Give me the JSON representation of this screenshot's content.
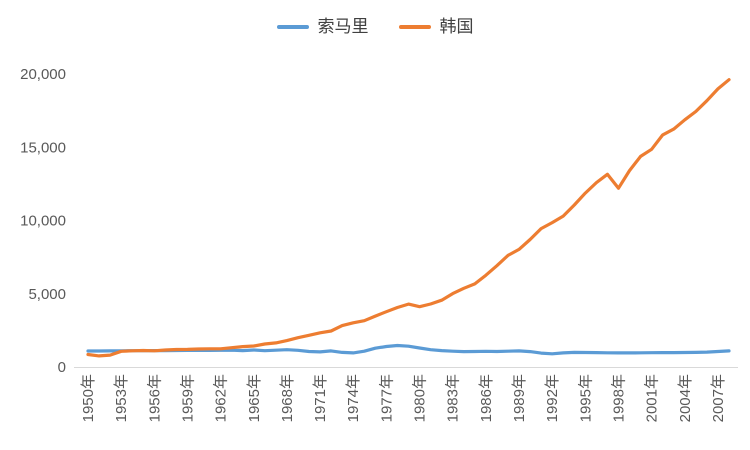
{
  "colors": {
    "background": "#FFFFFF",
    "axis_line": "#D9D9D9",
    "tick_text": "#595959",
    "legend_text": "#404040",
    "series_somalia": "#5B9BD5",
    "series_korea": "#ED7D31"
  },
  "chart_data": {
    "type": "line",
    "title": "",
    "xlabel": "",
    "ylabel": "",
    "grid": false,
    "legend_position": "top-center",
    "ylim": [
      0,
      20000
    ],
    "yticks": [
      {
        "label": "0",
        "value": 0
      },
      {
        "label": "5,000",
        "value": 5000
      },
      {
        "label": "10,000",
        "value": 10000
      },
      {
        "label": "15,000",
        "value": 15000
      },
      {
        "label": "20,000",
        "value": 20000
      }
    ],
    "xtick_years": [
      1950,
      1953,
      1956,
      1959,
      1962,
      1965,
      1968,
      1971,
      1974,
      1977,
      1980,
      1983,
      1986,
      1989,
      1992,
      1995,
      1998,
      2001,
      2004,
      2007
    ],
    "xtick_labels": [
      "1950年",
      "1953年",
      "1956年",
      "1959年",
      "1962年",
      "1965年",
      "1968年",
      "1971年",
      "1974年",
      "1977年",
      "1980年",
      "1983年",
      "1986年",
      "1989年",
      "1992年",
      "1995年",
      "1998年",
      "2001年",
      "2004年",
      "2007年"
    ],
    "x": [
      1950,
      1951,
      1952,
      1953,
      1954,
      1955,
      1956,
      1957,
      1958,
      1959,
      1960,
      1961,
      1962,
      1963,
      1964,
      1965,
      1966,
      1967,
      1968,
      1969,
      1970,
      1971,
      1972,
      1973,
      1974,
      1975,
      1976,
      1977,
      1978,
      1979,
      1980,
      1981,
      1982,
      1983,
      1984,
      1985,
      1986,
      1987,
      1988,
      1989,
      1990,
      1991,
      1992,
      1993,
      1994,
      1995,
      1996,
      1997,
      1998,
      1999,
      2000,
      2001,
      2002,
      2003,
      2004,
      2005,
      2006,
      2007,
      2008
    ],
    "series": [
      {
        "name": "索马里",
        "color": "#5B9BD5",
        "values": [
          1090,
          1095,
          1100,
          1105,
          1110,
          1115,
          1120,
          1120,
          1125,
          1130,
          1130,
          1135,
          1140,
          1150,
          1120,
          1160,
          1110,
          1150,
          1180,
          1140,
          1060,
          1030,
          1100,
          1000,
          960,
          1080,
          1280,
          1400,
          1470,
          1420,
          1300,
          1180,
          1120,
          1080,
          1050,
          1060,
          1070,
          1060,
          1080,
          1100,
          1050,
          950,
          900,
          960,
          1000,
          990,
          980,
          970,
          960,
          965,
          970,
          975,
          980,
          985,
          990,
          1000,
          1020,
          1060,
          1100
        ]
      },
      {
        "name": "韩国",
        "color": "#ED7D31",
        "values": [
          854,
          757,
          810,
          1071,
          1106,
          1124,
          1109,
          1163,
          1194,
          1204,
          1226,
          1243,
          1245,
          1316,
          1390,
          1436,
          1570,
          1645,
          1805,
          2000,
          2167,
          2332,
          2456,
          2824,
          3015,
          3162,
          3476,
          3775,
          4064,
          4294,
          4114,
          4302,
          4557,
          5007,
          5375,
          5670,
          6263,
          6916,
          7621,
          8027,
          8704,
          9445,
          9856,
          10303,
          11059,
          11873,
          12587,
          13153,
          12205,
          13403,
          14375,
          14862,
          15840,
          16237,
          16875,
          17440,
          18175,
          18983,
          19614
        ]
      }
    ]
  }
}
